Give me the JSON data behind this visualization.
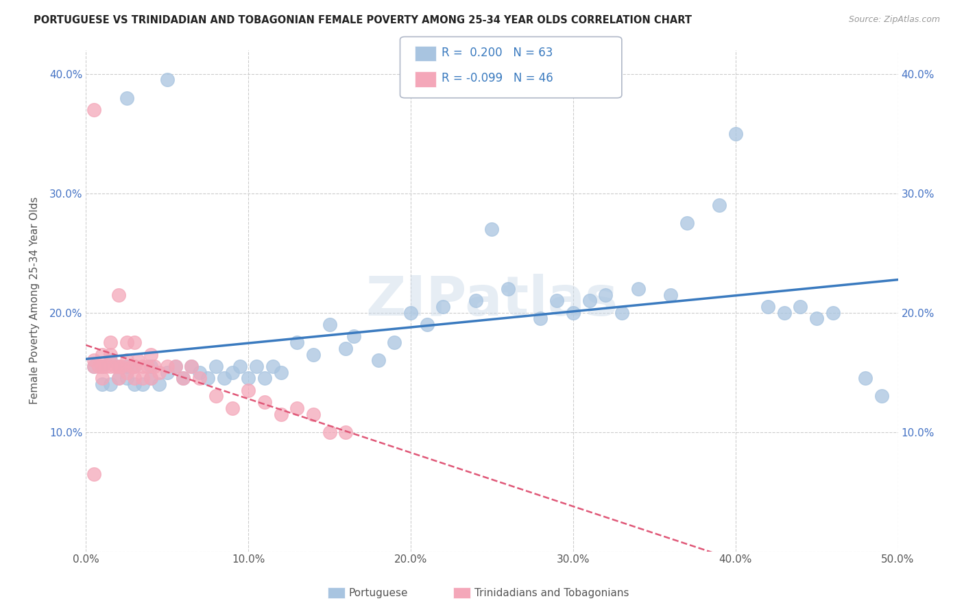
{
  "title": "PORTUGUESE VS TRINIDADIAN AND TOBAGONIAN FEMALE POVERTY AMONG 25-34 YEAR OLDS CORRELATION CHART",
  "source": "Source: ZipAtlas.com",
  "ylabel": "Female Poverty Among 25-34 Year Olds",
  "xlabel": "",
  "xlim": [
    0.0,
    0.5
  ],
  "ylim": [
    0.0,
    0.42
  ],
  "xticks": [
    0.0,
    0.1,
    0.2,
    0.3,
    0.4,
    0.5
  ],
  "yticks": [
    0.0,
    0.1,
    0.2,
    0.3,
    0.4
  ],
  "xticklabels": [
    "0.0%",
    "10.0%",
    "20.0%",
    "30.0%",
    "40.0%",
    "50.0%"
  ],
  "yticklabels": [
    "",
    "10.0%",
    "20.0%",
    "30.0%",
    "40.0%"
  ],
  "legend1_label": "Portuguese",
  "legend2_label": "Trinidadians and Tobagonians",
  "R1": 0.2,
  "N1": 63,
  "R2": -0.099,
  "N2": 46,
  "blue_color": "#a8c4e0",
  "pink_color": "#f4a7b9",
  "blue_line_color": "#3a7abf",
  "pink_line_color": "#e05878",
  "watermark": "ZIPatlas",
  "blue_x": [
    0.005,
    0.01,
    0.01,
    0.015,
    0.015,
    0.02,
    0.02,
    0.025,
    0.025,
    0.03,
    0.03,
    0.035,
    0.04,
    0.04,
    0.045,
    0.05,
    0.055,
    0.06,
    0.065,
    0.07,
    0.075,
    0.08,
    0.085,
    0.09,
    0.095,
    0.1,
    0.105,
    0.11,
    0.115,
    0.12,
    0.13,
    0.14,
    0.15,
    0.16,
    0.165,
    0.18,
    0.19,
    0.2,
    0.21,
    0.22,
    0.24,
    0.25,
    0.26,
    0.28,
    0.29,
    0.3,
    0.31,
    0.32,
    0.33,
    0.34,
    0.36,
    0.37,
    0.39,
    0.4,
    0.42,
    0.43,
    0.44,
    0.45,
    0.46,
    0.48,
    0.49,
    0.025,
    0.05
  ],
  "blue_y": [
    0.155,
    0.14,
    0.155,
    0.14,
    0.16,
    0.145,
    0.155,
    0.145,
    0.155,
    0.14,
    0.155,
    0.14,
    0.145,
    0.155,
    0.14,
    0.15,
    0.155,
    0.145,
    0.155,
    0.15,
    0.145,
    0.155,
    0.145,
    0.15,
    0.155,
    0.145,
    0.155,
    0.145,
    0.155,
    0.15,
    0.175,
    0.165,
    0.19,
    0.17,
    0.18,
    0.16,
    0.175,
    0.2,
    0.19,
    0.205,
    0.21,
    0.27,
    0.22,
    0.195,
    0.21,
    0.2,
    0.21,
    0.215,
    0.2,
    0.22,
    0.215,
    0.275,
    0.29,
    0.35,
    0.205,
    0.2,
    0.205,
    0.195,
    0.2,
    0.145,
    0.13,
    0.38,
    0.395
  ],
  "pink_x": [
    0.005,
    0.005,
    0.005,
    0.008,
    0.01,
    0.01,
    0.01,
    0.012,
    0.015,
    0.015,
    0.015,
    0.018,
    0.02,
    0.02,
    0.02,
    0.022,
    0.025,
    0.025,
    0.025,
    0.028,
    0.03,
    0.03,
    0.03,
    0.032,
    0.035,
    0.035,
    0.038,
    0.04,
    0.04,
    0.042,
    0.045,
    0.05,
    0.055,
    0.06,
    0.065,
    0.07,
    0.08,
    0.09,
    0.1,
    0.11,
    0.12,
    0.13,
    0.14,
    0.15,
    0.16,
    0.005
  ],
  "pink_y": [
    0.155,
    0.16,
    0.37,
    0.155,
    0.145,
    0.155,
    0.165,
    0.155,
    0.155,
    0.165,
    0.175,
    0.155,
    0.145,
    0.155,
    0.215,
    0.155,
    0.15,
    0.16,
    0.175,
    0.155,
    0.145,
    0.155,
    0.175,
    0.16,
    0.145,
    0.155,
    0.155,
    0.145,
    0.165,
    0.155,
    0.15,
    0.155,
    0.155,
    0.145,
    0.155,
    0.145,
    0.13,
    0.12,
    0.135,
    0.125,
    0.115,
    0.12,
    0.115,
    0.1,
    0.1,
    0.065
  ]
}
